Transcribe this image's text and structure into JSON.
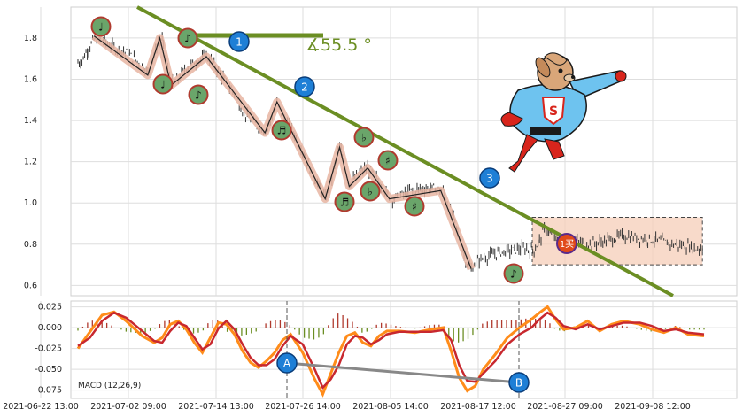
{
  "chart_data": [
    {
      "type": "line",
      "ylim": [
        0.55,
        1.95
      ],
      "y_ticks": [
        "1.8",
        "1.6",
        "1.4",
        "1.2",
        "1.0",
        "0.8",
        "0.6"
      ],
      "series": [
        {
          "values": [
            [
              0.0,
              1.68
            ],
            [
              0.5,
              1.69
            ],
            [
              1.0,
              1.73
            ],
            [
              1.5,
              1.76
            ],
            [
              2.0,
              1.79
            ],
            [
              2.5,
              1.8
            ],
            [
              3.0,
              1.79
            ],
            [
              3.5,
              1.78
            ],
            [
              4.5,
              1.75
            ],
            [
              5.5,
              1.74
            ],
            [
              7.0,
              1.7
            ],
            [
              8.0,
              1.67
            ],
            [
              8.7,
              1.63
            ],
            [
              9.3,
              1.7
            ],
            [
              10.0,
              1.78
            ],
            [
              10.5,
              1.79
            ],
            [
              11.0,
              1.68
            ],
            [
              11.6,
              1.58
            ],
            [
              12.5,
              1.6
            ],
            [
              13.5,
              1.66
            ],
            [
              14.5,
              1.68
            ],
            [
              15.5,
              1.7
            ],
            [
              16.0,
              1.71
            ],
            [
              16.6,
              1.69
            ],
            [
              17.5,
              1.64
            ],
            [
              18.5,
              1.58
            ],
            [
              19.5,
              1.53
            ],
            [
              20.5,
              1.45
            ],
            [
              21.5,
              1.4
            ],
            [
              22.5,
              1.37
            ],
            [
              23.3,
              1.35
            ],
            [
              24.0,
              1.4
            ],
            [
              24.8,
              1.48
            ],
            [
              25.5,
              1.43
            ],
            [
              26.3,
              1.37
            ],
            [
              27.0,
              1.33
            ],
            [
              27.8,
              1.27
            ],
            [
              28.5,
              1.2
            ],
            [
              29.5,
              1.12
            ],
            [
              30.2,
              1.07
            ],
            [
              30.8,
              1.02
            ],
            [
              31.3,
              1.06
            ],
            [
              32.0,
              1.18
            ],
            [
              32.6,
              1.27
            ],
            [
              33.3,
              1.18
            ],
            [
              33.8,
              1.09
            ],
            [
              34.5,
              1.12
            ],
            [
              35.3,
              1.15
            ],
            [
              36.1,
              1.17
            ],
            [
              37.0,
              1.13
            ],
            [
              38.0,
              1.07
            ],
            [
              39.0,
              1.02
            ],
            [
              40.0,
              1.03
            ],
            [
              41.5,
              1.06
            ],
            [
              43.0,
              1.07
            ],
            [
              44.5,
              1.07
            ],
            [
              45.5,
              1.06
            ],
            [
              46.0,
              1.0
            ],
            [
              46.8,
              0.93
            ],
            [
              47.5,
              0.83
            ],
            [
              48.3,
              0.72
            ],
            [
              49.0,
              0.68
            ],
            [
              49.8,
              0.72
            ],
            [
              51.0,
              0.74
            ],
            [
              52.5,
              0.76
            ],
            [
              54.0,
              0.77
            ],
            [
              55.5,
              0.78
            ],
            [
              56.5,
              0.77
            ],
            [
              57.0,
              0.78
            ],
            [
              57.5,
              0.82
            ],
            [
              58.3,
              0.88
            ],
            [
              59.0,
              0.84
            ],
            [
              60.5,
              0.79
            ],
            [
              62.0,
              0.81
            ],
            [
              64.0,
              0.8
            ],
            [
              66.0,
              0.82
            ],
            [
              68.0,
              0.84
            ],
            [
              70.0,
              0.83
            ],
            [
              72.0,
              0.82
            ],
            [
              74.0,
              0.8
            ],
            [
              76.0,
              0.79
            ],
            [
              77.0,
              0.78
            ],
            [
              78.0,
              0.78
            ]
          ]
        }
      ]
    },
    {
      "type": "line",
      "ylim": [
        -0.085,
        0.032
      ],
      "y_ticks": [
        "0.025",
        "0.000",
        "-0.025",
        "-0.050",
        "-0.075"
      ],
      "legend": "MACD (12,26,9)",
      "x_ticks": [
        "2021-06-22 13:00",
        "2021-07-02 09:00",
        "2021-07-14 13:00",
        "2021-07-26 14:00",
        "2021-08-05 14:00",
        "2021-08-17 12:00",
        "2021-08-27 09:00",
        "2021-09-08 12:00"
      ],
      "series": [
        {
          "values": [
            [
              0,
              -0.022
            ],
            [
              1.5,
              -0.012
            ],
            [
              3,
              0.008
            ],
            [
              4.5,
              0.018
            ],
            [
              6,
              0.012
            ],
            [
              8,
              -0.004
            ],
            [
              9.5,
              -0.016
            ],
            [
              10.5,
              -0.018
            ],
            [
              11.5,
              -0.004
            ],
            [
              12.5,
              0.006
            ],
            [
              13.5,
              0.002
            ],
            [
              14.5,
              -0.012
            ],
            [
              15.5,
              -0.026
            ],
            [
              16.5,
              -0.02
            ],
            [
              17.5,
              -0.001
            ],
            [
              18.5,
              0.008
            ],
            [
              19.5,
              -0.002
            ],
            [
              20.5,
              -0.02
            ],
            [
              21.5,
              -0.036
            ],
            [
              22.5,
              -0.045
            ],
            [
              23.5,
              -0.045
            ],
            [
              24.5,
              -0.038
            ],
            [
              25.5,
              -0.022
            ],
            [
              26.5,
              -0.01
            ],
            [
              28,
              -0.02
            ],
            [
              29.5,
              -0.05
            ],
            [
              30.5,
              -0.072
            ],
            [
              31.5,
              -0.062
            ],
            [
              32.5,
              -0.045
            ],
            [
              33.5,
              -0.02
            ],
            [
              34.5,
              -0.01
            ],
            [
              35.5,
              -0.012
            ],
            [
              36.5,
              -0.02
            ],
            [
              37.5,
              -0.015
            ],
            [
              38.5,
              -0.008
            ],
            [
              40,
              -0.005
            ],
            [
              42,
              -0.005
            ],
            [
              44,
              -0.005
            ],
            [
              45.5,
              -0.003
            ],
            [
              46.5,
              -0.015
            ],
            [
              47.5,
              -0.045
            ],
            [
              48.5,
              -0.064
            ],
            [
              49.5,
              -0.065
            ],
            [
              50.5,
              -0.055
            ],
            [
              52,
              -0.04
            ],
            [
              53.5,
              -0.02
            ],
            [
              55,
              -0.008
            ],
            [
              56.5,
              0.0
            ],
            [
              57.5,
              0.01
            ],
            [
              58.5,
              0.018
            ],
            [
              59.5,
              0.012
            ],
            [
              60.5,
              0.002
            ],
            [
              62,
              -0.002
            ],
            [
              63.5,
              0.004
            ],
            [
              65,
              -0.002
            ],
            [
              66.5,
              0.002
            ],
            [
              68,
              0.006
            ],
            [
              70,
              0.006
            ],
            [
              71.5,
              0.002
            ],
            [
              73,
              -0.004
            ],
            [
              74.5,
              -0.002
            ],
            [
              76,
              -0.006
            ],
            [
              78,
              -0.008
            ]
          ]
        },
        {
          "values": [
            [
              0,
              -0.025
            ],
            [
              1.5,
              -0.005
            ],
            [
              3,
              0.015
            ],
            [
              4.5,
              0.019
            ],
            [
              6,
              0.008
            ],
            [
              8,
              -0.01
            ],
            [
              9.5,
              -0.018
            ],
            [
              10.5,
              -0.012
            ],
            [
              11.5,
              0.004
            ],
            [
              12.5,
              0.008
            ],
            [
              13.5,
              -0.002
            ],
            [
              14.5,
              -0.018
            ],
            [
              15.5,
              -0.03
            ],
            [
              16.5,
              -0.012
            ],
            [
              17.5,
              0.006
            ],
            [
              18.5,
              0.004
            ],
            [
              19.5,
              -0.008
            ],
            [
              20.5,
              -0.028
            ],
            [
              21.5,
              -0.042
            ],
            [
              22.5,
              -0.048
            ],
            [
              23.5,
              -0.04
            ],
            [
              24.5,
              -0.03
            ],
            [
              25.5,
              -0.015
            ],
            [
              26.5,
              -0.008
            ],
            [
              28,
              -0.03
            ],
            [
              29.5,
              -0.062
            ],
            [
              30.5,
              -0.08
            ],
            [
              31.5,
              -0.055
            ],
            [
              32.5,
              -0.03
            ],
            [
              33.5,
              -0.01
            ],
            [
              34.5,
              -0.006
            ],
            [
              35.5,
              -0.018
            ],
            [
              36.5,
              -0.022
            ],
            [
              37.5,
              -0.01
            ],
            [
              38.5,
              -0.004
            ],
            [
              40,
              -0.004
            ],
            [
              42,
              -0.006
            ],
            [
              44,
              -0.002
            ],
            [
              45.5,
              0.0
            ],
            [
              46.5,
              -0.028
            ],
            [
              47.5,
              -0.06
            ],
            [
              48.5,
              -0.076
            ],
            [
              49.5,
              -0.07
            ],
            [
              50.5,
              -0.05
            ],
            [
              52,
              -0.032
            ],
            [
              53.5,
              -0.012
            ],
            [
              55,
              0.0
            ],
            [
              56.5,
              0.01
            ],
            [
              57.5,
              0.018
            ],
            [
              58.5,
              0.025
            ],
            [
              59.5,
              0.01
            ],
            [
              60.5,
              -0.002
            ],
            [
              62,
              0.0
            ],
            [
              63.5,
              0.008
            ],
            [
              65,
              -0.004
            ],
            [
              66.5,
              0.004
            ],
            [
              68,
              0.008
            ],
            [
              70,
              0.004
            ],
            [
              71.5,
              -0.002
            ],
            [
              73,
              -0.006
            ],
            [
              74.5,
              0.0
            ],
            [
              76,
              -0.008
            ],
            [
              78,
              -0.01
            ]
          ]
        }
      ]
    }
  ],
  "markers": {
    "notes": [
      "♩",
      "♩",
      "♪",
      "♪",
      "♬",
      "♬",
      "♭",
      "♭",
      "♯",
      "♮",
      "♯",
      "♪"
    ],
    "waves": [
      "1",
      "2",
      "3"
    ],
    "buy": "1买",
    "divergence": [
      "A",
      "B"
    ],
    "angle": "∡55.5 °"
  },
  "colors": {
    "trend": "#6b8e23",
    "wave_badge": "#1e7fd6",
    "note_badge": "#6aa56a",
    "note_border": "#b03a2e",
    "buy_badge": "#e04a1a",
    "macd_orange": "#ff8c1a",
    "macd_red": "#c8282e",
    "hist_pos": "#b03a2e",
    "hist_neg": "#6b8e23"
  },
  "mascot": "superhero-dog-icon"
}
